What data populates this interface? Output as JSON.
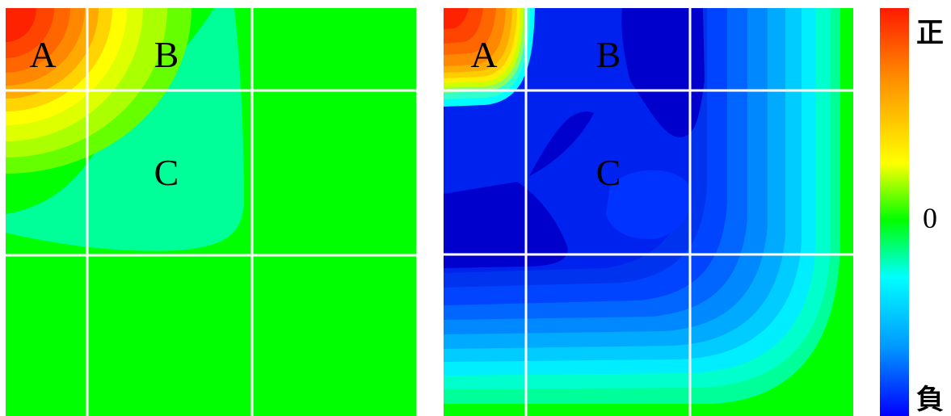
{
  "left_panel": {
    "labels": {
      "a": "A",
      "b": "B",
      "c": "C"
    }
  },
  "right_panel": {
    "labels": {
      "a": "A",
      "b": "B",
      "c": "C"
    }
  },
  "colorbar": {
    "top_label": "正",
    "middle_label": "0",
    "bottom_label": "負",
    "colors": [
      "#ff1a00",
      "#ff8c00",
      "#ffff00",
      "#00ff00",
      "#00ffff",
      "#0099ff",
      "#0000ff"
    ]
  }
}
